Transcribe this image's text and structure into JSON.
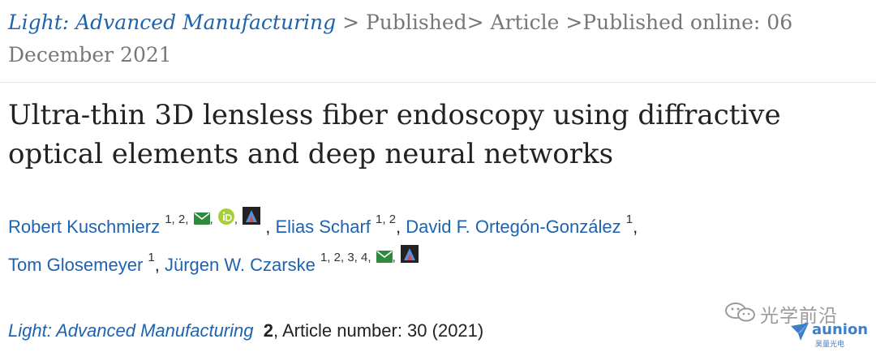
{
  "breadcrumb": {
    "journal": "Light: Advanced Manufacturing",
    "sep1": " > ",
    "published": "Published",
    "sep2": "> ",
    "article": "Article",
    "sep3": " >",
    "published_online": "Published online: 06 December 2021"
  },
  "article": {
    "title": "Ultra-thin 3D lensless fiber endoscopy using diffractive optical elements and deep neural networks"
  },
  "authors": [
    {
      "name": "Robert Kuschmierz",
      "affil": "1, 2",
      "icons": [
        "mail",
        "orcid",
        "profile"
      ]
    },
    {
      "name": "Elias Scharf",
      "affil": "1, 2",
      "icons": []
    },
    {
      "name": "David F. Ortegón-González",
      "affil": "1",
      "icons": []
    },
    {
      "name": "Tom Glosemeyer",
      "affil": "1",
      "icons": []
    },
    {
      "name": "Jürgen W. Czarske",
      "affil": "1, 2, 3, 4",
      "icons": [
        "mail",
        "profile"
      ]
    }
  ],
  "punct": {
    "comma": ","
  },
  "citation": {
    "journal": "Light: Advanced Manufacturing",
    "volume": "2",
    "rest": ", Article number: 30 (2021)"
  },
  "watermark": {
    "channel": "光学前沿",
    "brand": "aunion",
    "brand_sub": "昊量光电"
  },
  "colors": {
    "link": "#1e63b0",
    "text": "#222222",
    "muted": "#777777",
    "mail_icon": "#2e8b3d",
    "orcid_icon": "#a6ce39"
  }
}
